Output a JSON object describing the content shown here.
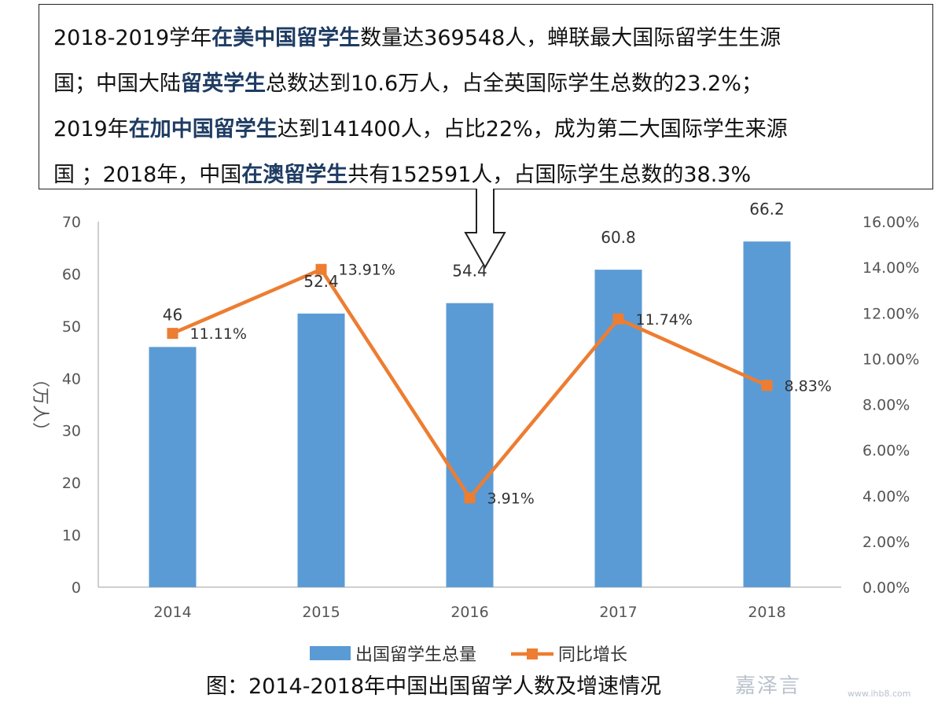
{
  "callout": {
    "lines": [
      [
        {
          "t": "2018-2019学年",
          "hl": false
        },
        {
          "t": "在美中国留学生",
          "hl": true
        },
        {
          "t": "数量达369548人，蝉联最大国际留学生生源",
          "hl": false
        }
      ],
      [
        {
          "t": "国；中国大陆",
          "hl": false
        },
        {
          "t": "留英学生",
          "hl": true
        },
        {
          "t": "总数达到10.6万人，占全英国际学生总数的23.2%；",
          "hl": false
        }
      ],
      [
        {
          "t": "2019年",
          "hl": false
        },
        {
          "t": "在加中国留学生",
          "hl": true
        },
        {
          "t": "达到141400人，占比22%，成为第二大国际学生来源",
          "hl": false
        }
      ],
      [
        {
          "t": "国 ；2018年，中国",
          "hl": false
        },
        {
          "t": "在澳留学生",
          "hl": true
        },
        {
          "t": "共有152591人，占国际学生总数的38.3%",
          "hl": false
        }
      ]
    ]
  },
  "caption": "图：2014-2018年中国出国留学人数及增速情况",
  "watermark": {
    "text": "嘉泽言",
    "sub": "www.ihb8.com"
  },
  "chart_data": {
    "type": "bar",
    "categories": [
      "2014",
      "2015",
      "2016",
      "2017",
      "2018"
    ],
    "series": [
      {
        "name": "出国留学生总量",
        "type": "bar",
        "axis": "left",
        "values": [
          46,
          52.4,
          54.4,
          60.8,
          66.2
        ],
        "labels": [
          "46",
          "52.4",
          "54.4",
          "60.8",
          "66.2"
        ],
        "color": "#5b9bd5"
      },
      {
        "name": "同比增长",
        "type": "line",
        "axis": "right",
        "values": [
          11.11,
          13.91,
          3.91,
          11.74,
          8.83
        ],
        "labels": [
          "11.11%",
          "13.91%",
          "3.91%",
          "11.74%",
          "8.83%"
        ],
        "color": "#ed7d31"
      }
    ],
    "ylabel": "（万人）",
    "ylim": [
      0,
      70
    ],
    "yticks": [
      "0",
      "10",
      "20",
      "30",
      "40",
      "50",
      "60",
      "70"
    ],
    "y2lim": [
      0,
      16
    ],
    "y2ticks": [
      "0.00%",
      "2.00%",
      "4.00%",
      "6.00%",
      "8.00%",
      "10.00%",
      "12.00%",
      "14.00%",
      "16.00%"
    ],
    "legend_position": "bottom",
    "grid": false
  }
}
